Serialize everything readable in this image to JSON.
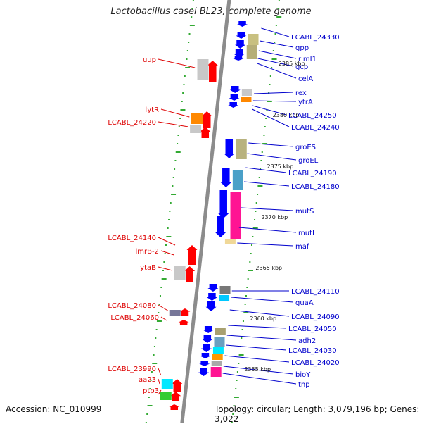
{
  "title": "Lactobacillus casei BL23, complete genome",
  "accession": "Accession: NC_010999",
  "summary": "Topology: circular; Length: 3,079,196 bp; Genes: 3,022",
  "colors": {
    "forward_arrow": "#ff0000",
    "reverse_arrow": "#0000ff",
    "backbone": "#8c8c8c",
    "ruler_dots": "#33aa33",
    "right_label": "#0000cc",
    "left_label": "#dd0000"
  },
  "kbp_labels": [
    "2385 kbp",
    "2380 kbp",
    "2375 kbp",
    "2370 kbp",
    "2365 kbp",
    "2360 kbp",
    "2355 kbp"
  ],
  "right_genes": [
    "LCABL_24330",
    "gpp",
    "rimI1",
    "gcp",
    "celA",
    "rex",
    "ytrA",
    "LCABL_24250",
    "LCABL_24240",
    "groES",
    "groEL",
    "LCABL_24190",
    "LCABL_24180",
    "mutS",
    "mutL",
    "maf",
    "LCABL_24110",
    "guaA",
    "LCABL_24090",
    "LCABL_24050",
    "adh2",
    "LCABL_24030",
    "LCABL_24020",
    "bioY",
    "tnp"
  ],
  "left_genes": [
    "uup",
    "lytR",
    "LCABL_24220",
    "LCABL_24140",
    "lmrB-2",
    "ytaB",
    "LCABL_24080",
    "LCABL_24060",
    "LCABL_23990",
    "aa23",
    "ptp3"
  ]
}
